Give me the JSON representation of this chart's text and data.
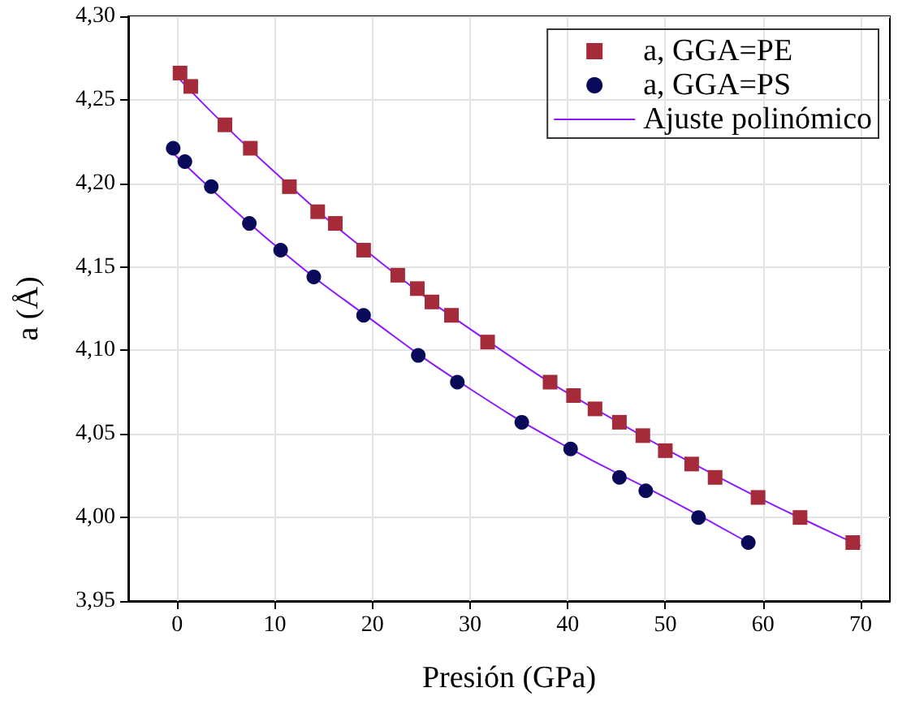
{
  "chart_data": {
    "type": "scatter",
    "xlabel": "Presión (GPa)",
    "ylabel": "a (Å)",
    "xlim": [
      -5,
      73
    ],
    "xticks": [
      0,
      10,
      20,
      30,
      40,
      50,
      60,
      70
    ],
    "ylim": [
      3.95,
      4.3
    ],
    "yticks": [
      {
        "value": 3.95,
        "label": "3,95"
      },
      {
        "value": 4.0,
        "label": "4,00"
      },
      {
        "value": 4.05,
        "label": "4,05"
      },
      {
        "value": 4.1,
        "label": "4,10"
      },
      {
        "value": 4.15,
        "label": "4,15"
      },
      {
        "value": 4.2,
        "label": "4,20"
      },
      {
        "value": 4.25,
        "label": "4,25"
      },
      {
        "value": 4.3,
        "label": "4,30"
      }
    ],
    "grid": true,
    "legend": "top right",
    "series": [
      {
        "name": "a, GGA=PE",
        "type": "scatter",
        "marker": "square",
        "color": "#a52a3a",
        "x": [
          0.3,
          1.4,
          4.9,
          7.5,
          11.5,
          14.4,
          16.2,
          19.1,
          22.6,
          24.6,
          26.1,
          28.1,
          31.8,
          38.2,
          40.6,
          42.8,
          45.3,
          47.7,
          50.0,
          52.7,
          55.1,
          59.5,
          63.8,
          69.2
        ],
        "values": [
          4.266,
          4.258,
          4.235,
          4.221,
          4.198,
          4.183,
          4.176,
          4.16,
          4.145,
          4.137,
          4.129,
          4.121,
          4.105,
          4.081,
          4.073,
          4.065,
          4.057,
          4.049,
          4.04,
          4.032,
          4.024,
          4.012,
          4.0,
          3.985
        ]
      },
      {
        "name": "a, GGA=PS",
        "type": "scatter",
        "marker": "circle",
        "color": "#0a0a5a",
        "x": [
          -0.4,
          0.8,
          3.5,
          7.4,
          10.6,
          14.0,
          19.1,
          24.7,
          28.7,
          35.3,
          40.3,
          45.3,
          48.0,
          53.4,
          58.5
        ],
        "values": [
          4.221,
          4.213,
          4.198,
          4.176,
          4.16,
          4.144,
          4.121,
          4.097,
          4.081,
          4.057,
          4.041,
          4.024,
          4.016,
          4.0,
          3.985
        ]
      },
      {
        "name": "Ajuste polinómico",
        "type": "line",
        "marker": "none",
        "color": "#8b1aff",
        "x": [
          0.3,
          9,
          21,
          34,
          44,
          57.5,
          67,
          70
        ],
        "values": [
          4.262,
          4.212,
          4.152,
          4.097,
          4.061,
          4.018,
          3.991,
          3.983
        ]
      },
      {
        "type": "line",
        "marker": "none",
        "color": "#8b1aff",
        "x": [
          -0.4,
          10,
          20,
          30,
          40,
          50,
          58.5
        ],
        "values": [
          4.218,
          4.163,
          4.118,
          4.077,
          4.042,
          4.012,
          3.985
        ]
      }
    ]
  }
}
